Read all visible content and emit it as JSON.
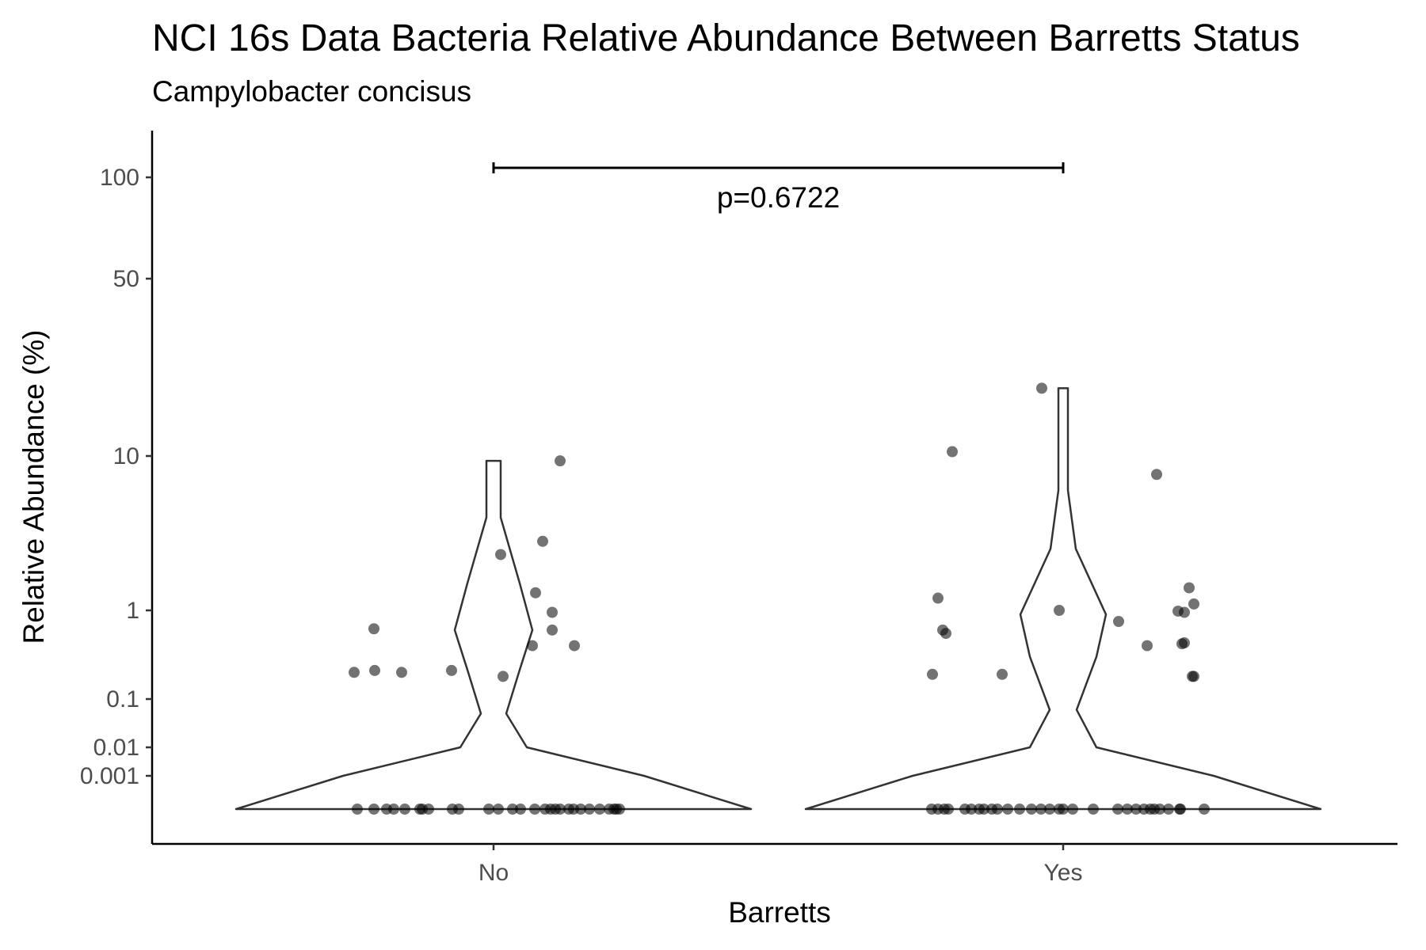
{
  "chart_data": {
    "type": "violin",
    "title": "NCI 16s Data Bacteria Relative Abundance Between Barretts Status",
    "subtitle": "Campylobacter concisus",
    "xlabel": "Barretts",
    "ylabel": "Relative Abundance (%)",
    "categories": [
      "No",
      "Yes"
    ],
    "y_scale": "pseudo-log",
    "y_ticks": [
      {
        "value": 100,
        "label": "100"
      },
      {
        "value": 50,
        "label": "50"
      },
      {
        "value": 10,
        "label": "10"
      },
      {
        "value": 1,
        "label": "1"
      },
      {
        "value": 0.1,
        "label": "0.1"
      },
      {
        "value": 0.01,
        "label": "0.01"
      },
      {
        "value": 0.001,
        "label": "0.001"
      }
    ],
    "ylim": [
      0,
      150
    ],
    "grid": false,
    "annotation": {
      "text": "p=0.6722",
      "between": [
        "No",
        "Yes"
      ]
    },
    "points": {
      "No": [
        0,
        0,
        0,
        0,
        0,
        0,
        0,
        0,
        0,
        0,
        0,
        0,
        0,
        0,
        0,
        0,
        0,
        0,
        0,
        0,
        0,
        0,
        0,
        0,
        0,
        0,
        0,
        0,
        0.62,
        0.2,
        0.21,
        0.2,
        0.21,
        2.3,
        0.18,
        9.3,
        2.8,
        1.3,
        0.95,
        0.6,
        0.4,
        0.4
      ],
      "Yes": [
        0,
        0,
        0,
        0,
        0,
        0,
        0,
        0,
        0,
        0,
        0,
        0,
        0,
        0,
        0,
        0,
        0,
        0,
        0,
        0,
        0,
        0,
        0,
        0,
        0,
        0,
        0,
        0,
        0,
        0,
        18.5,
        10.4,
        1.2,
        0.55,
        0.6,
        0.19,
        0.19,
        1.0,
        0.75,
        7.6,
        0.4,
        0.98,
        0.95,
        1.4,
        1.1,
        0.42,
        0.43,
        0.18,
        0.18
      ]
    },
    "violin_max": {
      "No": 9.3,
      "Yes": 18.5
    }
  }
}
